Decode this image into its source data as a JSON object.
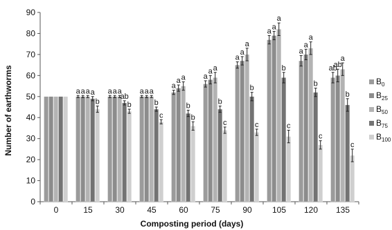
{
  "chart_data": {
    "type": "bar",
    "xlabel": "Composting period (days)",
    "ylabel": "Number of earthworms",
    "ylim": [
      0,
      90
    ],
    "yticks": [
      0,
      10,
      20,
      30,
      40,
      50,
      60,
      70,
      80,
      90
    ],
    "categories": [
      "0",
      "15",
      "30",
      "45",
      "60",
      "75",
      "90",
      "105",
      "120",
      "135"
    ],
    "grid": false,
    "legend_position": "right",
    "series": [
      {
        "name": "B0",
        "base": "B",
        "sub": "0",
        "color": "#9b9b9b",
        "values": [
          50,
          50,
          50,
          50,
          52,
          56,
          65,
          77,
          67,
          59
        ],
        "errors": [
          0,
          0.5,
          0.5,
          0.5,
          1,
          1.5,
          1.5,
          2,
          2.5,
          2.5
        ],
        "labels": [
          "",
          "a",
          "a",
          "a",
          "a",
          "a",
          "a",
          "a",
          "a",
          "ab"
        ]
      },
      {
        "name": "B25",
        "base": "B",
        "sub": "25",
        "color": "#8c8c8c",
        "values": [
          50,
          50,
          50,
          50,
          54,
          58,
          67,
          79,
          70,
          60
        ],
        "errors": [
          0,
          0.5,
          0.5,
          0.5,
          1.5,
          2,
          2,
          2,
          2.5,
          3
        ],
        "labels": [
          "",
          "a",
          "a",
          "a",
          "a",
          "a",
          "a",
          "a",
          "a",
          "ab"
        ]
      },
      {
        "name": "B50",
        "base": "B",
        "sub": "50",
        "color": "#b3b3b3",
        "values": [
          50,
          50,
          50,
          50,
          55,
          59,
          70,
          82,
          73,
          63
        ],
        "errors": [
          0,
          0.5,
          0.5,
          0.5,
          2,
          2.5,
          3,
          3,
          3,
          3
        ],
        "labels": [
          "",
          "a",
          "a",
          "a",
          "a",
          "a",
          "a",
          "a",
          "a",
          "a"
        ]
      },
      {
        "name": "B75",
        "base": "B",
        "sub": "75",
        "color": "#737373",
        "values": [
          50,
          49,
          47,
          44,
          42,
          44,
          50,
          59,
          52,
          46
        ],
        "errors": [
          0,
          1,
          1,
          1,
          1.5,
          1.5,
          2,
          2.5,
          2,
          3
        ],
        "labels": [
          "",
          "a",
          "ab",
          "b",
          "b",
          "b",
          "b",
          "b",
          "b",
          "b"
        ]
      },
      {
        "name": "B100",
        "base": "B",
        "sub": "100",
        "color": "#cfcfcf",
        "values": [
          50,
          44,
          43,
          38,
          36,
          34,
          33,
          31,
          27,
          22
        ],
        "errors": [
          0,
          1.5,
          1,
          1,
          2,
          1.5,
          1.5,
          3,
          2,
          3
        ],
        "labels": [
          "",
          "b",
          "b",
          "c",
          "b",
          "c",
          "c",
          "c",
          "c",
          "c"
        ]
      }
    ]
  }
}
